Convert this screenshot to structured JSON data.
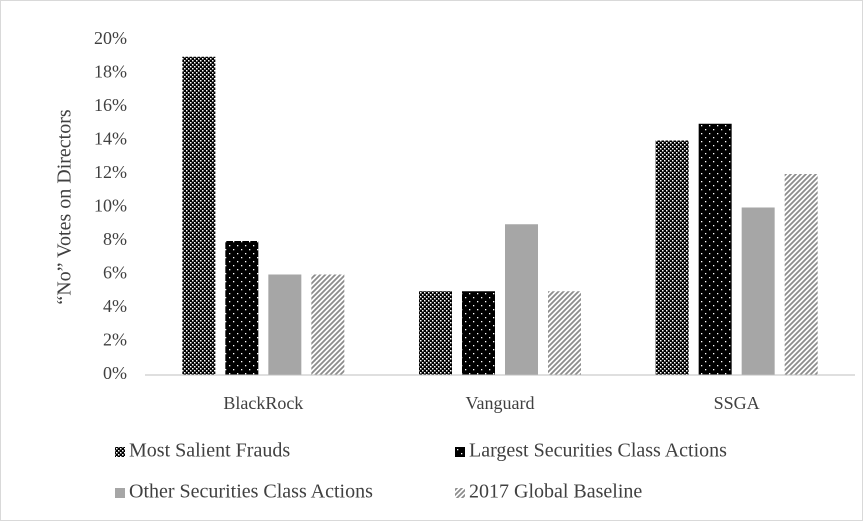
{
  "chart_data": {
    "type": "bar",
    "y_label": "“No” Votes on Directors",
    "categories": [
      "BlackRock",
      "Vanguard",
      "SSGA"
    ],
    "series": [
      {
        "name": "Most Salient Frauds",
        "color": "#000000",
        "pattern": "checker",
        "values": [
          19,
          5,
          14
        ]
      },
      {
        "name": "Largest Securities Class Actions",
        "color": "#000000",
        "pattern": "dots",
        "values": [
          8,
          5,
          15
        ]
      },
      {
        "name": "Other Securities Class Actions",
        "color": "#a6a6a6",
        "pattern": "solid",
        "values": [
          6,
          9,
          10
        ]
      },
      {
        "name": "2017 Global Baseline",
        "color": "#8c8c8c",
        "pattern": "stripes",
        "values": [
          6,
          5,
          12
        ]
      }
    ],
    "ylim": [
      0,
      20
    ],
    "yticks": [
      {
        "value": 0,
        "label": "0%"
      },
      {
        "value": 2,
        "label": "2%"
      },
      {
        "value": 4,
        "label": "4%"
      },
      {
        "value": 6,
        "label": "6%"
      },
      {
        "value": 8,
        "label": "8%"
      },
      {
        "value": 10,
        "label": "10%"
      },
      {
        "value": 12,
        "label": "12%"
      },
      {
        "value": 14,
        "label": "14%"
      },
      {
        "value": 16,
        "label": "16%"
      },
      {
        "value": 18,
        "label": "18%"
      },
      {
        "value": 20,
        "label": "20%"
      }
    ],
    "grid": false
  }
}
